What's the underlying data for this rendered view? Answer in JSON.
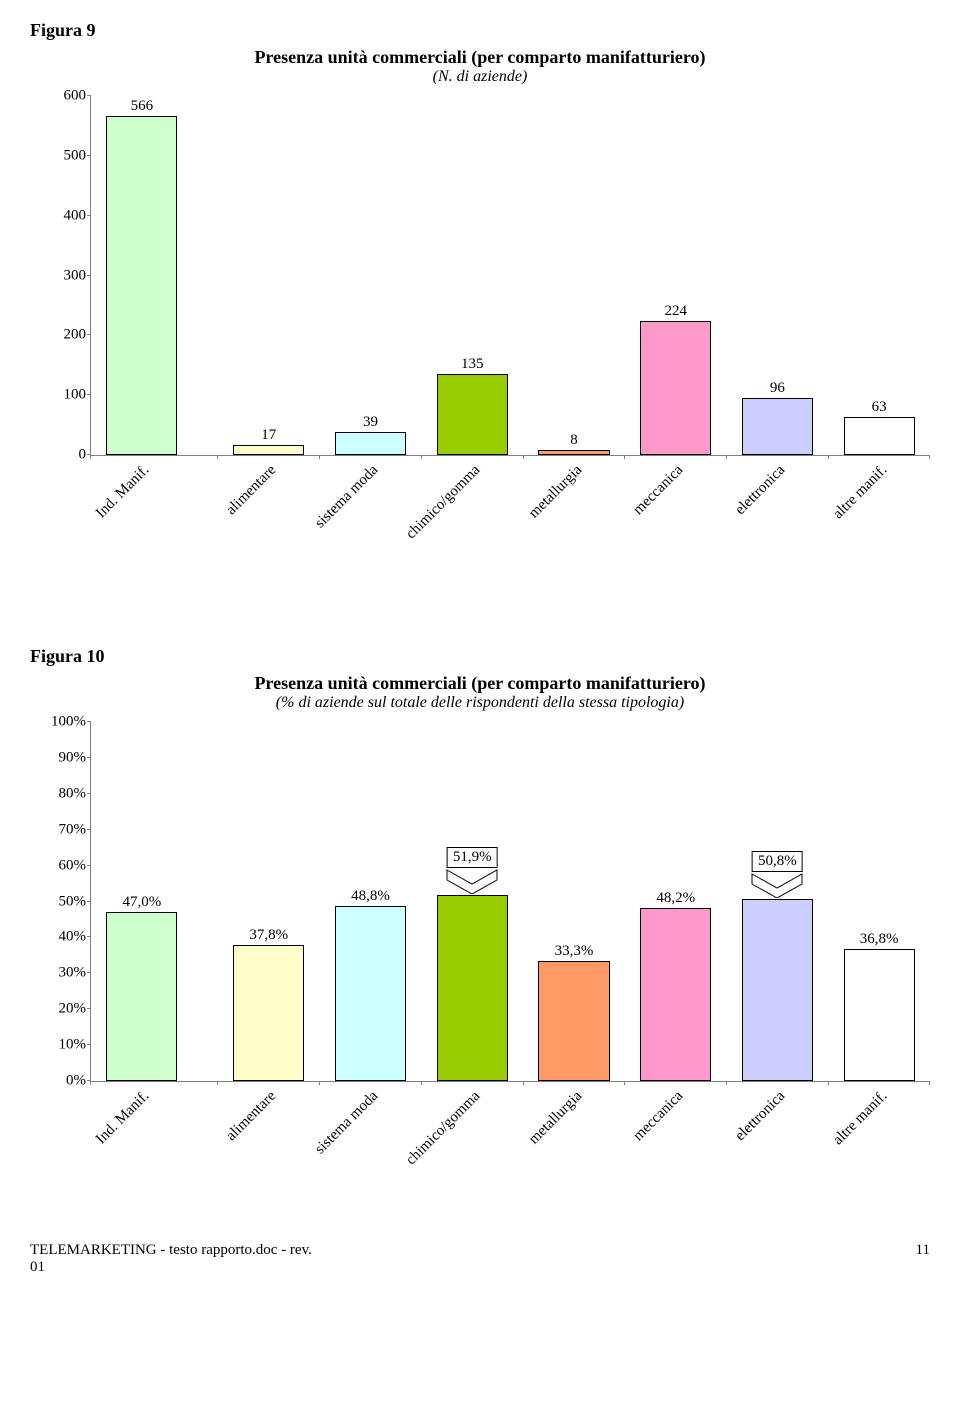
{
  "figure9": {
    "label": "Figura 9",
    "title": "Presenza unità commerciali (per comparto manifatturiero)",
    "subtitle": "(N. di aziende)",
    "ymax": 600,
    "ystep": 100,
    "categories": [
      "Ind. Manif.",
      "alimentare",
      "sistema moda",
      "chimico/gomma",
      "metallurgia",
      "meccanica",
      "elettronica",
      "altre manif."
    ],
    "values": [
      566,
      17,
      39,
      135,
      8,
      224,
      96,
      63
    ],
    "colors": [
      "#ccffcc",
      "#ffffcc",
      "#ccffff",
      "#99cc00",
      "#ff9966",
      "#ff99cc",
      "#ccccff",
      "#ffffff"
    ],
    "value_fontsize": 15,
    "label_fontsize": 15,
    "border_color": "#000000",
    "axis_color": "#808080",
    "label_rotation_deg": -45,
    "gap_after_first": true
  },
  "figure10": {
    "label": "Figura 10",
    "title": "Presenza unità commerciali (per comparto manifatturiero)",
    "subtitle": "(% di aziende sul totale delle rispondenti della stessa tipologia)",
    "ymax": 100,
    "ystep": 10,
    "ysuffix": "%",
    "categories": [
      "Ind. Manif.",
      "alimentare",
      "sistema moda",
      "chimico/gomma",
      "metallurgia",
      "meccanica",
      "elettronica",
      "altre manif."
    ],
    "values": [
      47.0,
      37.8,
      48.8,
      51.9,
      33.3,
      48.2,
      50.8,
      36.8
    ],
    "value_labels": [
      "47,0%",
      "37,8%",
      "48,8%",
      "51,9%",
      "33,3%",
      "48,2%",
      "50,8%",
      "36,8%"
    ],
    "colors": [
      "#ccffcc",
      "#ffffcc",
      "#ccffff",
      "#99cc00",
      "#ff9966",
      "#ff99cc",
      "#ccccff",
      "#ffffff"
    ],
    "callouts": [
      3,
      6
    ],
    "value_fontsize": 15,
    "label_fontsize": 15,
    "border_color": "#000000",
    "axis_color": "#808080",
    "label_rotation_deg": -45,
    "gap_after_first": true
  },
  "footer": {
    "left_line1": "TELEMARKETING - testo rapporto.doc - rev.",
    "left_line2": "01",
    "page": "11"
  }
}
